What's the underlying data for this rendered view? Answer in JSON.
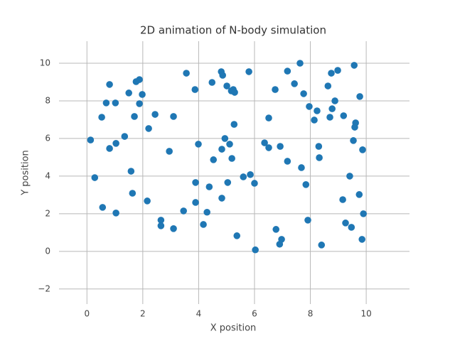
{
  "chart_data": {
    "type": "scatter",
    "title": "2D animation of N-body simulation",
    "x_label": "X position",
    "y_label": "Y position",
    "color": "#1f77b4",
    "grid": true,
    "xlim": [
      -1.0,
      11.55
    ],
    "ylim": [
      -2.8,
      11.17
    ],
    "xticks": [
      0,
      2,
      4,
      6,
      8,
      10
    ],
    "yticks": [
      {
        "value": -2,
        "label": "−2"
      },
      0,
      2,
      4,
      6,
      8,
      10
    ],
    "x": [
      0.13,
      0.28,
      0.53,
      0.56,
      0.69,
      0.81,
      0.81,
      1.02,
      1.04,
      1.04,
      1.35,
      1.5,
      1.58,
      1.63,
      1.7,
      1.76,
      1.88,
      1.88,
      1.98,
      2.21,
      2.16,
      2.44,
      2.65,
      2.65,
      2.95,
      3.1,
      3.1,
      3.46,
      3.56,
      3.87,
      3.89,
      3.89,
      3.99,
      4.17,
      4.3,
      4.38,
      4.48,
      4.53,
      4.81,
      4.86,
      4.83,
      4.83,
      4.94,
      5.04,
      5.01,
      5.11,
      5.17,
      5.19,
      5.24,
      5.29,
      5.27,
      5.37,
      5.6,
      5.8,
      5.85,
      6.0,
      6.03,
      6.36,
      6.51,
      6.51,
      6.74,
      6.77,
      6.9,
      6.92,
      6.97,
      7.18,
      7.18,
      7.43,
      7.63,
      7.68,
      7.76,
      7.84,
      7.91,
      7.96,
      8.14,
      8.24,
      8.3,
      8.32,
      8.4,
      8.63,
      8.7,
      8.75,
      8.78,
      8.88,
      8.98,
      9.19,
      9.16,
      9.26,
      9.41,
      9.47,
      9.54,
      9.57,
      9.59,
      9.62,
      9.75,
      9.77,
      9.85,
      9.87,
      9.9
    ],
    "values": [
      5.92,
      3.92,
      7.13,
      2.34,
      7.89,
      8.87,
      5.47,
      7.89,
      5.74,
      2.04,
      6.11,
      8.42,
      4.26,
      3.09,
      7.17,
      9.02,
      9.13,
      7.85,
      8.34,
      6.53,
      2.68,
      7.28,
      1.66,
      1.36,
      5.32,
      7.17,
      1.21,
      2.15,
      9.47,
      8.6,
      3.66,
      2.6,
      5.7,
      1.43,
      2.08,
      3.43,
      8.98,
      4.87,
      9.55,
      9.36,
      5.43,
      2.83,
      6.0,
      3.66,
      8.79,
      5.7,
      8.53,
      4.94,
      8.6,
      8.45,
      6.75,
      0.83,
      3.96,
      9.55,
      4.08,
      3.62,
      0.08,
      5.77,
      7.09,
      5.51,
      8.6,
      1.17,
      0.38,
      5.58,
      0.64,
      9.58,
      4.79,
      8.91,
      10.0,
      4.45,
      8.38,
      3.55,
      1.66,
      7.7,
      6.98,
      7.47,
      5.58,
      4.98,
      0.34,
      8.79,
      7.13,
      9.47,
      7.58,
      8.0,
      9.62,
      7.21,
      2.75,
      1.51,
      4.0,
      1.28,
      5.89,
      9.89,
      6.6,
      6.83,
      3.02,
      8.23,
      0.64,
      5.4,
      2.0
    ]
  }
}
